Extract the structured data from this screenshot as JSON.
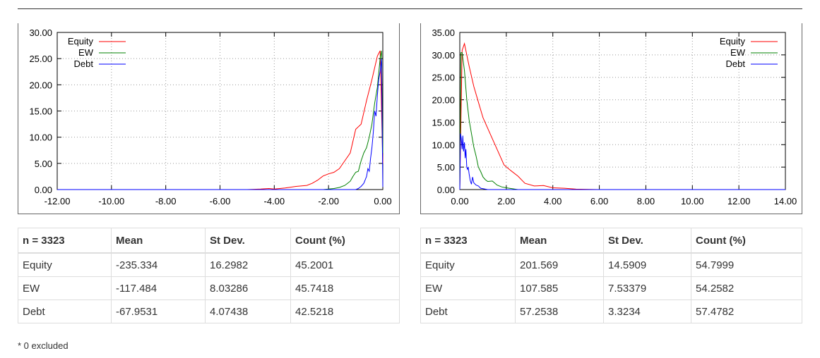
{
  "colors": {
    "equity": "#ff0000",
    "ew": "#008000",
    "debt": "#0000ff"
  },
  "chart_data": [
    {
      "type": "line",
      "xlim": [
        -12,
        0
      ],
      "ylim": [
        0,
        30
      ],
      "xticks": [
        "-12.00",
        "-10.00",
        "-8.00",
        "-6.00",
        "-4.00",
        "-2.00",
        "0.00"
      ],
      "xtick_values": [
        -12,
        -10,
        -8,
        -6,
        -4,
        -2,
        0
      ],
      "yticks": [
        "0.00",
        "5.00",
        "10.00",
        "15.00",
        "20.00",
        "25.00",
        "30.00"
      ],
      "ytick_values": [
        0,
        5,
        10,
        15,
        20,
        25,
        30
      ],
      "grid": true,
      "legend_position": "top-left",
      "series": [
        {
          "name": "Equity",
          "color": "#ff0000",
          "x": [
            -12,
            -5,
            -4.5,
            -4.2,
            -4,
            -3.6,
            -3.2,
            -2.8,
            -2.6,
            -2.4,
            -2.2,
            -2,
            -1.8,
            -1.6,
            -1.4,
            -1.2,
            -1,
            -0.8,
            -0.6,
            -0.4,
            -0.2,
            -0.1,
            0
          ],
          "y": [
            0,
            0,
            0.1,
            0.2,
            0.1,
            0.3,
            0.6,
            0.8,
            1.2,
            1.8,
            2.6,
            3.0,
            3.3,
            4.0,
            5.5,
            7.0,
            11.5,
            12.5,
            17.0,
            21.0,
            25.5,
            26.5,
            5
          ]
        },
        {
          "name": "EW",
          "color": "#008000",
          "x": [
            -12,
            -2.2,
            -2,
            -1.8,
            -1.6,
            -1.4,
            -1.3,
            -1.2,
            -1.1,
            -1,
            -0.9,
            -0.8,
            -0.7,
            -0.6,
            -0.5,
            -0.4,
            -0.3,
            -0.2,
            -0.1,
            -0.05,
            0
          ],
          "y": [
            0,
            0,
            0.1,
            0.2,
            0.4,
            0.8,
            1.2,
            1.6,
            2.5,
            3.3,
            3.5,
            5.5,
            7.0,
            8.0,
            10.0,
            12.5,
            16.5,
            19.5,
            25.0,
            26.5,
            7
          ]
        },
        {
          "name": "Debt",
          "color": "#0000ff",
          "x": [
            -12,
            -1,
            -0.9,
            -0.8,
            -0.7,
            -0.6,
            -0.55,
            -0.5,
            -0.45,
            -0.4,
            -0.35,
            -0.3,
            -0.25,
            -0.2,
            -0.15,
            -0.1,
            -0.05,
            0
          ],
          "y": [
            0,
            0,
            0.2,
            0.6,
            1.2,
            2.5,
            4.0,
            3.5,
            6.0,
            8.0,
            11.0,
            15.0,
            14.0,
            18.0,
            21.0,
            22.5,
            25.0,
            0.5
          ]
        }
      ]
    },
    {
      "type": "line",
      "xlim": [
        0,
        14
      ],
      "ylim": [
        0,
        35
      ],
      "xticks": [
        "0.00",
        "2.00",
        "4.00",
        "6.00",
        "8.00",
        "10.00",
        "12.00",
        "14.00"
      ],
      "xtick_values": [
        0,
        2,
        4,
        6,
        8,
        10,
        12,
        14
      ],
      "yticks": [
        "0.00",
        "5.00",
        "10.00",
        "15.00",
        "20.00",
        "25.00",
        "30.00",
        "35.00"
      ],
      "ytick_values": [
        0,
        5,
        10,
        15,
        20,
        25,
        30,
        35
      ],
      "grid": true,
      "legend_position": "top-right",
      "series": [
        {
          "name": "Equity",
          "color": "#ff0000",
          "x": [
            0,
            0.1,
            0.2,
            0.4,
            0.6,
            0.8,
            1.0,
            1.3,
            1.6,
            1.9,
            2.2,
            2.5,
            2.8,
            3.2,
            3.6,
            4.0,
            4.5,
            5.0,
            6,
            14
          ],
          "y": [
            0,
            31,
            32.5,
            27.5,
            23,
            19.5,
            16,
            12.5,
            9,
            5.5,
            4.2,
            3.0,
            1.4,
            0.8,
            0.9,
            0.4,
            0.3,
            0.1,
            0,
            0
          ]
        },
        {
          "name": "EW",
          "color": "#008000",
          "x": [
            0,
            0.05,
            0.1,
            0.2,
            0.3,
            0.4,
            0.5,
            0.6,
            0.7,
            0.8,
            0.9,
            1.0,
            1.1,
            1.2,
            1.4,
            1.6,
            1.8,
            2.0,
            2.5,
            14
          ],
          "y": [
            0,
            30.5,
            30.5,
            26.5,
            20,
            15.5,
            12.5,
            9.5,
            7.5,
            5,
            4,
            2.8,
            2.2,
            1.8,
            1.9,
            1.0,
            0.6,
            0.4,
            0,
            0
          ]
        },
        {
          "name": "Debt",
          "color": "#0000ff",
          "x": [
            0,
            0.03,
            0.06,
            0.1,
            0.13,
            0.16,
            0.2,
            0.23,
            0.26,
            0.3,
            0.33,
            0.36,
            0.4,
            0.45,
            0.5,
            0.55,
            0.6,
            0.7,
            0.8,
            0.9,
            1.0,
            1.2,
            14
          ],
          "y": [
            0,
            12.5,
            11.5,
            9,
            12,
            8.5,
            10.5,
            7,
            9,
            5,
            4.5,
            5,
            3.5,
            2,
            1.2,
            2.8,
            1.5,
            1,
            0.8,
            0.3,
            0.2,
            0,
            0
          ]
        }
      ]
    }
  ],
  "tables": [
    {
      "headers": [
        "n = 3323",
        "Mean",
        "St Dev.",
        "Count (%)"
      ],
      "rows": [
        [
          "Equity",
          "-235.334",
          "16.2982",
          "45.2001"
        ],
        [
          "EW",
          "-117.484",
          "8.03286",
          "45.7418"
        ],
        [
          "Debt",
          "-67.9531",
          "4.07438",
          "42.5218"
        ]
      ]
    },
    {
      "headers": [
        "n = 3323",
        "Mean",
        "St Dev.",
        "Count (%)"
      ],
      "rows": [
        [
          "Equity",
          "201.569",
          "14.5909",
          "54.7999"
        ],
        [
          "EW",
          "107.585",
          "7.53379",
          "54.2582"
        ],
        [
          "Debt",
          "57.2538",
          "3.3234",
          "57.4782"
        ]
      ]
    }
  ],
  "footnote": "* 0 excluded"
}
